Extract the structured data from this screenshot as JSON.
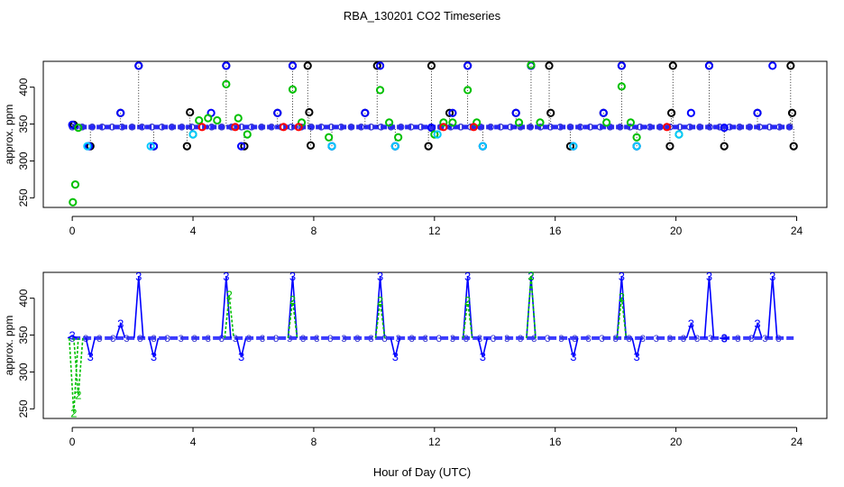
{
  "figure": {
    "title": "RBA_130201  CO2 Timeseries",
    "xlabel": "Hour of Day (UTC)"
  },
  "chart_data": [
    {
      "type": "scatter",
      "name": "top-panel",
      "ylabel": "approx. ppm",
      "xlim": [
        -0.96,
        25
      ],
      "ylim": [
        237,
        435
      ],
      "xticks": [
        0,
        4,
        8,
        12,
        16,
        20,
        24
      ],
      "yticks": [
        250,
        300,
        350,
        400
      ],
      "baseline": 346,
      "markers": "circles",
      "series": [
        {
          "name": "black",
          "color": "#000000",
          "x": [
            0.05,
            0.6,
            1.6,
            2.2,
            2.7,
            3.8,
            3.9,
            5.1,
            5.7,
            6.8,
            7.3,
            7.8,
            7.85,
            7.9,
            8.6,
            9.7,
            10.1,
            10.7,
            11.8,
            11.9,
            12.5,
            13.1,
            13.6,
            14.7,
            15.2,
            15.8,
            15.85,
            16.5,
            17.6,
            18.2,
            18.7,
            19.8,
            19.85,
            19.9,
            21.1,
            21.6,
            22.7,
            23.8,
            23.85,
            23.9
          ],
          "y": [
            349,
            320,
            365,
            429,
            320,
            320,
            366,
            429,
            320,
            365,
            429,
            429,
            366,
            321,
            320,
            365,
            429,
            320,
            320,
            429,
            365,
            429,
            320,
            365,
            429,
            429,
            365,
            320,
            365,
            429,
            320,
            320,
            365,
            429,
            429,
            320,
            365,
            429,
            365,
            320
          ]
        },
        {
          "name": "blue",
          "color": "#0000ff",
          "x": [
            0.0,
            0.55,
            1.6,
            2.2,
            2.7,
            4.6,
            5.1,
            5.6,
            6.8,
            7.3,
            8.6,
            9.7,
            10.2,
            10.7,
            11.9,
            12.6,
            13.1,
            13.6,
            14.7,
            15.2,
            16.6,
            17.6,
            18.2,
            18.7,
            20.5,
            21.1,
            21.6,
            22.7,
            23.2
          ],
          "y": [
            349,
            320,
            365,
            429,
            320,
            365,
            429,
            320,
            365,
            429,
            320,
            365,
            429,
            320,
            345,
            365,
            429,
            320,
            365,
            429,
            320,
            365,
            429,
            320,
            365,
            429,
            345,
            365,
            429
          ]
        },
        {
          "name": "green",
          "color": "#00c000",
          "x": [
            0.02,
            0.1,
            0.2,
            4.0,
            4.2,
            4.5,
            4.8,
            5.1,
            5.5,
            5.8,
            7.3,
            7.6,
            8.5,
            10.2,
            10.5,
            10.8,
            12.0,
            12.3,
            12.6,
            13.1,
            13.4,
            14.8,
            15.2,
            15.5,
            17.7,
            18.2,
            18.5,
            18.7,
            20.1
          ],
          "y": [
            244,
            268,
            345,
            336,
            355,
            358,
            355,
            404,
            358,
            336,
            397,
            352,
            332,
            396,
            352,
            332,
            336,
            352,
            352,
            396,
            352,
            352,
            430,
            352,
            352,
            401,
            352,
            332,
            336
          ]
        },
        {
          "name": "cyan",
          "color": "#00c8ff",
          "x": [
            0.5,
            2.6,
            4.0,
            8.6,
            10.7,
            12.1,
            13.6,
            16.6,
            18.7,
            20.1
          ],
          "y": [
            320,
            320,
            336,
            320,
            320,
            336,
            320,
            320,
            320,
            336
          ]
        },
        {
          "name": "red",
          "color": "#ff0000",
          "x": [
            4.3,
            5.4,
            7.0,
            7.5,
            12.3,
            13.3,
            19.7
          ],
          "y": [
            346,
            346,
            346,
            346,
            346,
            346,
            346
          ]
        }
      ]
    },
    {
      "type": "line",
      "name": "bottom-panel",
      "ylabel": "approx. ppm",
      "xlim": [
        -0.96,
        25
      ],
      "ylim": [
        237,
        435
      ],
      "xticks": [
        0,
        4,
        8,
        12,
        16,
        20,
        24
      ],
      "yticks": [
        250,
        300,
        350,
        400
      ],
      "baseline": 346,
      "markers": "digits",
      "series": [
        {
          "name": "blue",
          "color": "#0000ff",
          "marker": "3",
          "x": [
            0.0,
            0.6,
            1.6,
            2.2,
            2.7,
            5.1,
            5.6,
            7.3,
            10.2,
            10.7,
            13.1,
            13.6,
            15.2,
            16.6,
            18.2,
            18.7,
            20.5,
            21.1,
            21.6,
            22.7,
            23.2
          ],
          "y": [
            349,
            320,
            365,
            429,
            320,
            429,
            320,
            429,
            429,
            320,
            429,
            320,
            429,
            320,
            429,
            320,
            365,
            429,
            345,
            365,
            429
          ]
        },
        {
          "name": "green",
          "color": "#00c000",
          "marker": "2",
          "x": [
            0.05,
            0.2,
            5.2,
            7.3,
            10.2,
            13.1,
            15.2,
            18.2
          ],
          "y": [
            244,
            268,
            404,
            397,
            396,
            396,
            430,
            401
          ]
        }
      ]
    }
  ]
}
